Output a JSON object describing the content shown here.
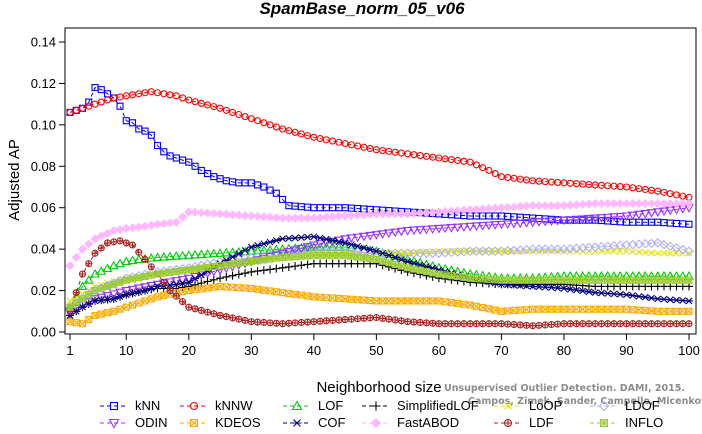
{
  "chart_data": {
    "type": "line",
    "title": "SpamBase_norm_05_v06",
    "xlabel": "Neighborhood size",
    "ylabel": "Adjusted AP",
    "xlim": [
      1,
      100
    ],
    "ylim": [
      0,
      0.14
    ],
    "xticks": [
      1,
      10,
      20,
      30,
      40,
      50,
      60,
      70,
      80,
      90,
      100
    ],
    "yticks": [
      0.0,
      0.02,
      0.04,
      0.06,
      0.08,
      0.1,
      0.12,
      0.14
    ],
    "ytick_labels": [
      "0.00",
      "0.02",
      "0.04",
      "0.06",
      "0.08",
      "0.10",
      "0.12",
      "0.14"
    ],
    "grid": false,
    "legend_position": "bottom",
    "watermark_lines": [
      "Unsupervised Outlier Detection. DAMI, 2015.",
      "Campos, Zimek, Sander, Campello, Micenkova, Schubert, Assent, Houle"
    ],
    "series": [
      {
        "name": "kNN",
        "color": "#0000ff",
        "marker": "square",
        "x": [
          1,
          2,
          3,
          4,
          5,
          6,
          7,
          8,
          9,
          10,
          11,
          12,
          13,
          14,
          15,
          16,
          17,
          18,
          19,
          20,
          22,
          24,
          26,
          28,
          30,
          32,
          34,
          36,
          40,
          45,
          50,
          55,
          60,
          65,
          70,
          75,
          80,
          85,
          90,
          95,
          100
        ],
        "y": [
          0.106,
          0.107,
          0.108,
          0.111,
          0.118,
          0.117,
          0.115,
          0.113,
          0.109,
          0.102,
          0.101,
          0.098,
          0.097,
          0.095,
          0.09,
          0.087,
          0.085,
          0.084,
          0.083,
          0.082,
          0.078,
          0.075,
          0.073,
          0.072,
          0.072,
          0.07,
          0.067,
          0.061,
          0.06,
          0.06,
          0.059,
          0.058,
          0.057,
          0.056,
          0.056,
          0.055,
          0.054,
          0.054,
          0.053,
          0.053,
          0.052
        ]
      },
      {
        "name": "kNNW",
        "color": "#ff0000",
        "marker": "circle",
        "x": [
          1,
          3,
          5,
          8,
          10,
          12,
          14,
          16,
          18,
          20,
          25,
          30,
          35,
          40,
          45,
          50,
          55,
          60,
          65,
          68,
          70,
          75,
          80,
          85,
          90,
          95,
          100
        ],
        "y": [
          0.106,
          0.108,
          0.11,
          0.113,
          0.114,
          0.115,
          0.116,
          0.115,
          0.114,
          0.112,
          0.108,
          0.103,
          0.098,
          0.094,
          0.091,
          0.088,
          0.086,
          0.084,
          0.082,
          0.078,
          0.075,
          0.073,
          0.072,
          0.071,
          0.07,
          0.068,
          0.065
        ]
      },
      {
        "name": "LOF",
        "color": "#00cc00",
        "marker": "triangle-up",
        "x": [
          1,
          3,
          5,
          8,
          10,
          12,
          15,
          20,
          25,
          30,
          35,
          40,
          45,
          50,
          55,
          60,
          65,
          70,
          75,
          80,
          85,
          90,
          95,
          100
        ],
        "y": [
          0.012,
          0.022,
          0.028,
          0.032,
          0.034,
          0.035,
          0.036,
          0.037,
          0.038,
          0.039,
          0.04,
          0.041,
          0.041,
          0.039,
          0.035,
          0.031,
          0.028,
          0.026,
          0.026,
          0.027,
          0.027,
          0.027,
          0.027,
          0.027
        ]
      },
      {
        "name": "SimplifiedLOF",
        "color": "#000000",
        "marker": "plus",
        "x": [
          1,
          3,
          5,
          8,
          10,
          13,
          15,
          18,
          20,
          25,
          30,
          35,
          40,
          45,
          50,
          55,
          60,
          65,
          70,
          75,
          80,
          85,
          90,
          95,
          100
        ],
        "y": [
          0.008,
          0.012,
          0.015,
          0.016,
          0.018,
          0.02,
          0.021,
          0.021,
          0.022,
          0.026,
          0.029,
          0.031,
          0.033,
          0.033,
          0.033,
          0.029,
          0.026,
          0.024,
          0.023,
          0.023,
          0.023,
          0.022,
          0.022,
          0.022,
          0.022
        ]
      },
      {
        "name": "LoOP",
        "color": "#e6e600",
        "marker": "x",
        "x": [
          1,
          5,
          10,
          15,
          20,
          25,
          30,
          35,
          40,
          45,
          50,
          55,
          60,
          65,
          70,
          75,
          80,
          85,
          90,
          95,
          100
        ],
        "y": [
          0.015,
          0.022,
          0.026,
          0.028,
          0.03,
          0.033,
          0.035,
          0.036,
          0.037,
          0.038,
          0.038,
          0.038,
          0.039,
          0.039,
          0.039,
          0.039,
          0.039,
          0.039,
          0.039,
          0.038,
          0.038
        ]
      },
      {
        "name": "LDOF",
        "color": "#b0b0ff",
        "marker": "diamond",
        "x": [
          1,
          5,
          10,
          15,
          20,
          25,
          30,
          35,
          40,
          45,
          50,
          55,
          60,
          65,
          70,
          75,
          80,
          85,
          90,
          95,
          100
        ],
        "y": [
          0.012,
          0.02,
          0.026,
          0.029,
          0.031,
          0.034,
          0.036,
          0.038,
          0.039,
          0.039,
          0.038,
          0.038,
          0.038,
          0.039,
          0.039,
          0.04,
          0.04,
          0.041,
          0.042,
          0.043,
          0.039
        ]
      },
      {
        "name": "ODIN",
        "color": "#9933ff",
        "marker": "triangle-down",
        "x": [
          1,
          5,
          10,
          15,
          20,
          25,
          30,
          35,
          40,
          45,
          50,
          55,
          60,
          65,
          70,
          75,
          80,
          85,
          90,
          95,
          100
        ],
        "y": [
          0.01,
          0.016,
          0.02,
          0.023,
          0.026,
          0.03,
          0.034,
          0.038,
          0.042,
          0.045,
          0.047,
          0.049,
          0.05,
          0.051,
          0.052,
          0.053,
          0.054,
          0.055,
          0.056,
          0.058,
          0.06
        ]
      },
      {
        "name": "KDEOS",
        "color": "#ffaa00",
        "marker": "square-x",
        "x": [
          1,
          3,
          5,
          8,
          10,
          12,
          15,
          18,
          20,
          25,
          30,
          35,
          40,
          45,
          50,
          55,
          60,
          65,
          70,
          75,
          80,
          85,
          90,
          95,
          100
        ],
        "y": [
          0.005,
          0.004,
          0.008,
          0.01,
          0.012,
          0.014,
          0.017,
          0.019,
          0.02,
          0.022,
          0.021,
          0.019,
          0.017,
          0.016,
          0.015,
          0.015,
          0.015,
          0.013,
          0.01,
          0.011,
          0.011,
          0.011,
          0.011,
          0.01,
          0.01
        ]
      },
      {
        "name": "COF",
        "color": "#000080",
        "marker": "star",
        "x": [
          1,
          3,
          5,
          8,
          10,
          13,
          15,
          18,
          20,
          25,
          30,
          35,
          40,
          45,
          50,
          55,
          60,
          65,
          70,
          75,
          80,
          85,
          90,
          95,
          100
        ],
        "y": [
          0.008,
          0.012,
          0.015,
          0.016,
          0.018,
          0.02,
          0.022,
          0.023,
          0.024,
          0.033,
          0.041,
          0.045,
          0.046,
          0.043,
          0.039,
          0.034,
          0.03,
          0.026,
          0.023,
          0.022,
          0.021,
          0.019,
          0.018,
          0.016,
          0.015
        ]
      },
      {
        "name": "FastABOD",
        "color": "#ffb3ff",
        "marker": "diamond-filled",
        "x": [
          1,
          3,
          5,
          8,
          10,
          13,
          15,
          18,
          20,
          25,
          30,
          35,
          40,
          45,
          50,
          55,
          60,
          65,
          70,
          75,
          80,
          85,
          90,
          95,
          100
        ],
        "y": [
          0.032,
          0.04,
          0.045,
          0.049,
          0.05,
          0.051,
          0.052,
          0.053,
          0.058,
          0.057,
          0.056,
          0.055,
          0.055,
          0.056,
          0.057,
          0.057,
          0.058,
          0.059,
          0.06,
          0.061,
          0.061,
          0.062,
          0.062,
          0.062,
          0.062
        ]
      },
      {
        "name": "LDF",
        "color": "#aa2222",
        "marker": "circle-plus",
        "x": [
          1,
          3,
          5,
          7,
          9,
          11,
          13,
          15,
          17,
          20,
          25,
          30,
          35,
          40,
          45,
          50,
          55,
          60,
          65,
          70,
          75,
          80,
          85,
          90,
          95,
          100
        ],
        "y": [
          0.01,
          0.028,
          0.038,
          0.043,
          0.044,
          0.042,
          0.035,
          0.028,
          0.02,
          0.012,
          0.008,
          0.005,
          0.004,
          0.005,
          0.006,
          0.007,
          0.005,
          0.004,
          0.004,
          0.004,
          0.003,
          0.004,
          0.004,
          0.004,
          0.004,
          0.004
        ]
      },
      {
        "name": "INFLO",
        "color": "#99cc33",
        "marker": "square-cross",
        "x": [
          1,
          5,
          10,
          15,
          20,
          25,
          30,
          35,
          40,
          45,
          50,
          55,
          60,
          65,
          70,
          75,
          80,
          85,
          90,
          95,
          100
        ],
        "y": [
          0.012,
          0.02,
          0.025,
          0.028,
          0.03,
          0.032,
          0.034,
          0.036,
          0.037,
          0.037,
          0.035,
          0.031,
          0.028,
          0.026,
          0.025,
          0.025,
          0.025,
          0.025,
          0.025,
          0.025,
          0.025
        ]
      }
    ],
    "legend_rows": [
      [
        "kNN",
        "kNNW",
        "LOF",
        "SimplifiedLOF",
        "LoOP",
        "LDOF"
      ],
      [
        "ODIN",
        "KDEOS",
        "COF",
        "FastABOD",
        "LDF",
        "INFLO"
      ]
    ]
  }
}
